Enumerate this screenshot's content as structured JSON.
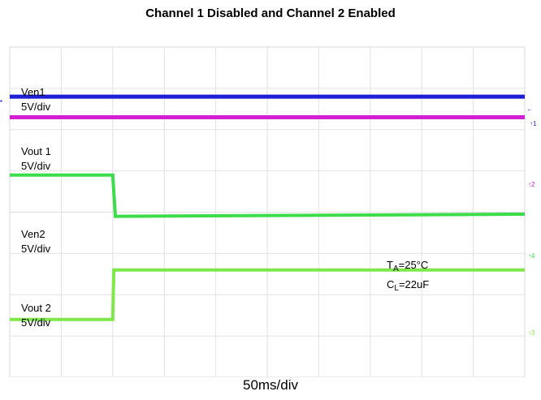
{
  "chart_data": {
    "type": "line",
    "title": "Channel 1 Disabled and Channel 2 Enabled",
    "xlabel": "50ms/div",
    "ylabel": "",
    "x_divisions": 10,
    "y_divisions": 8,
    "grid": true,
    "xlim": [
      0,
      10
    ],
    "series": [
      {
        "name": "Ven1",
        "scale": "5V/div",
        "color": "#1f1fd6",
        "x": [
          0,
          10
        ],
        "y": [
          6.8,
          6.8
        ]
      },
      {
        "name": "Vout 1",
        "scale": "5V/div",
        "color": "#d21fd2",
        "x": [
          0,
          10
        ],
        "y": [
          6.3,
          6.3
        ]
      },
      {
        "name": "Ven2",
        "scale": "5V/div",
        "color": "#3cdc4a",
        "x": [
          0,
          2,
          2.05,
          10
        ],
        "y": [
          4.9,
          4.9,
          3.9,
          3.95
        ]
      },
      {
        "name": "Vout 2",
        "scale": "5V/div",
        "color": "#7ee84a",
        "x": [
          0,
          2,
          2.02,
          10
        ],
        "y": [
          1.4,
          1.4,
          2.6,
          2.6
        ]
      }
    ],
    "annotations": [
      {
        "prefix": "T",
        "sub": "A",
        "suffix": "=25°C"
      },
      {
        "prefix": "C",
        "sub": "L",
        "suffix": "=22uF"
      }
    ]
  }
}
